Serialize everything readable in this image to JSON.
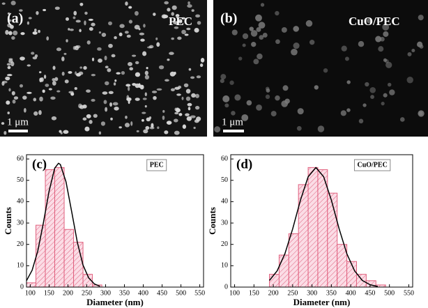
{
  "panels": [
    {
      "label": "(a)",
      "name": "PEC",
      "scale_bar": "1 μm"
    },
    {
      "label": "(b)",
      "name": "CuO/PEC",
      "scale_bar": "1 μm"
    }
  ],
  "chart_data": [
    {
      "type": "histogram",
      "panel_label": "(c)",
      "xlabel": "Diameter (nm)",
      "ylabel": "Counts",
      "bins": [
        90,
        115,
        140,
        165,
        190,
        215,
        240,
        265,
        290
      ],
      "series": [
        {
          "name": "PEC",
          "color": "#e0607e",
          "values": [
            2,
            29,
            55,
            56,
            27,
            21,
            6,
            1
          ]
        }
      ],
      "fit": {
        "color": "#000000",
        "x": [
          90,
          105,
          120,
          135,
          150,
          165,
          175,
          180,
          195,
          210,
          225,
          240,
          255,
          270,
          285
        ],
        "values": [
          3.0,
          7.9,
          16.9,
          30.2,
          44.9,
          55.7,
          58,
          57.4,
          49.3,
          35.2,
          20.9,
          10.3,
          4.3,
          1.5,
          0.4
        ]
      },
      "xlim": [
        90,
        560
      ],
      "xticks": [
        100,
        150,
        200,
        250,
        300,
        350,
        400,
        450,
        500,
        550
      ],
      "ylim": [
        0,
        62
      ],
      "yticks": [
        0,
        10,
        20,
        30,
        40,
        50,
        60
      ]
    },
    {
      "type": "histogram",
      "panel_label": "(d)",
      "xlabel": "Diameter (nm)",
      "ylabel": "Counts",
      "bins": [
        190,
        215,
        240,
        265,
        290,
        315,
        340,
        365,
        390,
        415,
        440,
        465,
        490
      ],
      "series": [
        {
          "name": "CuO/PEC",
          "color": "#e0607e",
          "values": [
            6,
            15,
            25,
            48,
            56,
            55,
            44,
            20,
            12,
            6,
            3,
            1
          ]
        }
      ],
      "fit": {
        "color": "#000000",
        "x": [
          190,
          210,
          230,
          250,
          270,
          290,
          310,
          330,
          350,
          370,
          390,
          410,
          430,
          450,
          470
        ],
        "values": [
          3.1,
          7.6,
          15.6,
          27.3,
          40.7,
          51.7,
          56,
          51.7,
          40.7,
          27.3,
          15.6,
          7.6,
          3.1,
          1.1,
          0.3
        ]
      },
      "xlim": [
        90,
        560
      ],
      "xticks": [
        100,
        150,
        200,
        250,
        300,
        350,
        400,
        450,
        500,
        550
      ],
      "ylim": [
        0,
        62
      ],
      "yticks": [
        0,
        10,
        20,
        30,
        40,
        50,
        60
      ]
    }
  ]
}
